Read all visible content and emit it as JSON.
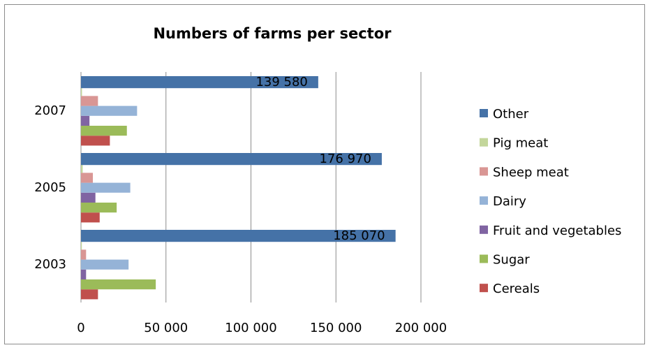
{
  "chart_data": {
    "type": "bar",
    "orientation": "horizontal",
    "title": "Numbers of farms per sector",
    "categories": [
      "2003",
      "2005",
      "2007"
    ],
    "xlim": [
      0,
      200000
    ],
    "x_ticks": [
      "0",
      "50 000",
      "100 000",
      "150 000",
      "200 000"
    ],
    "grid": "vertical",
    "legend_position": "right",
    "series": [
      {
        "name": "Cereals",
        "color": "#C0504D",
        "values": [
          10000,
          11000,
          17000
        ]
      },
      {
        "name": "Sugar",
        "color": "#9BBB59",
        "values": [
          44000,
          21000,
          27000
        ]
      },
      {
        "name": "Fruit and vegetables",
        "color": "#8064A2",
        "values": [
          3000,
          8500,
          5000
        ]
      },
      {
        "name": "Dairy",
        "color": "#95B3D7",
        "values": [
          28000,
          29000,
          33000
        ]
      },
      {
        "name": "Sheep meat",
        "color": "#D99694",
        "values": [
          3000,
          7000,
          10000
        ]
      },
      {
        "name": "Pig meat",
        "color": "#C3D69B",
        "values": [
          500,
          1000,
          600
        ]
      },
      {
        "name": "Other",
        "color": "#4572A7",
        "values": [
          185070,
          176970,
          139580
        ]
      }
    ],
    "data_labels": {
      "Other": [
        "185 070",
        "176 970",
        "139 580"
      ]
    },
    "legend_order": [
      "Other",
      "Pig meat",
      "Sheep meat",
      "Dairy",
      "Fruit and vegetables",
      "Sugar",
      "Cereals"
    ]
  }
}
